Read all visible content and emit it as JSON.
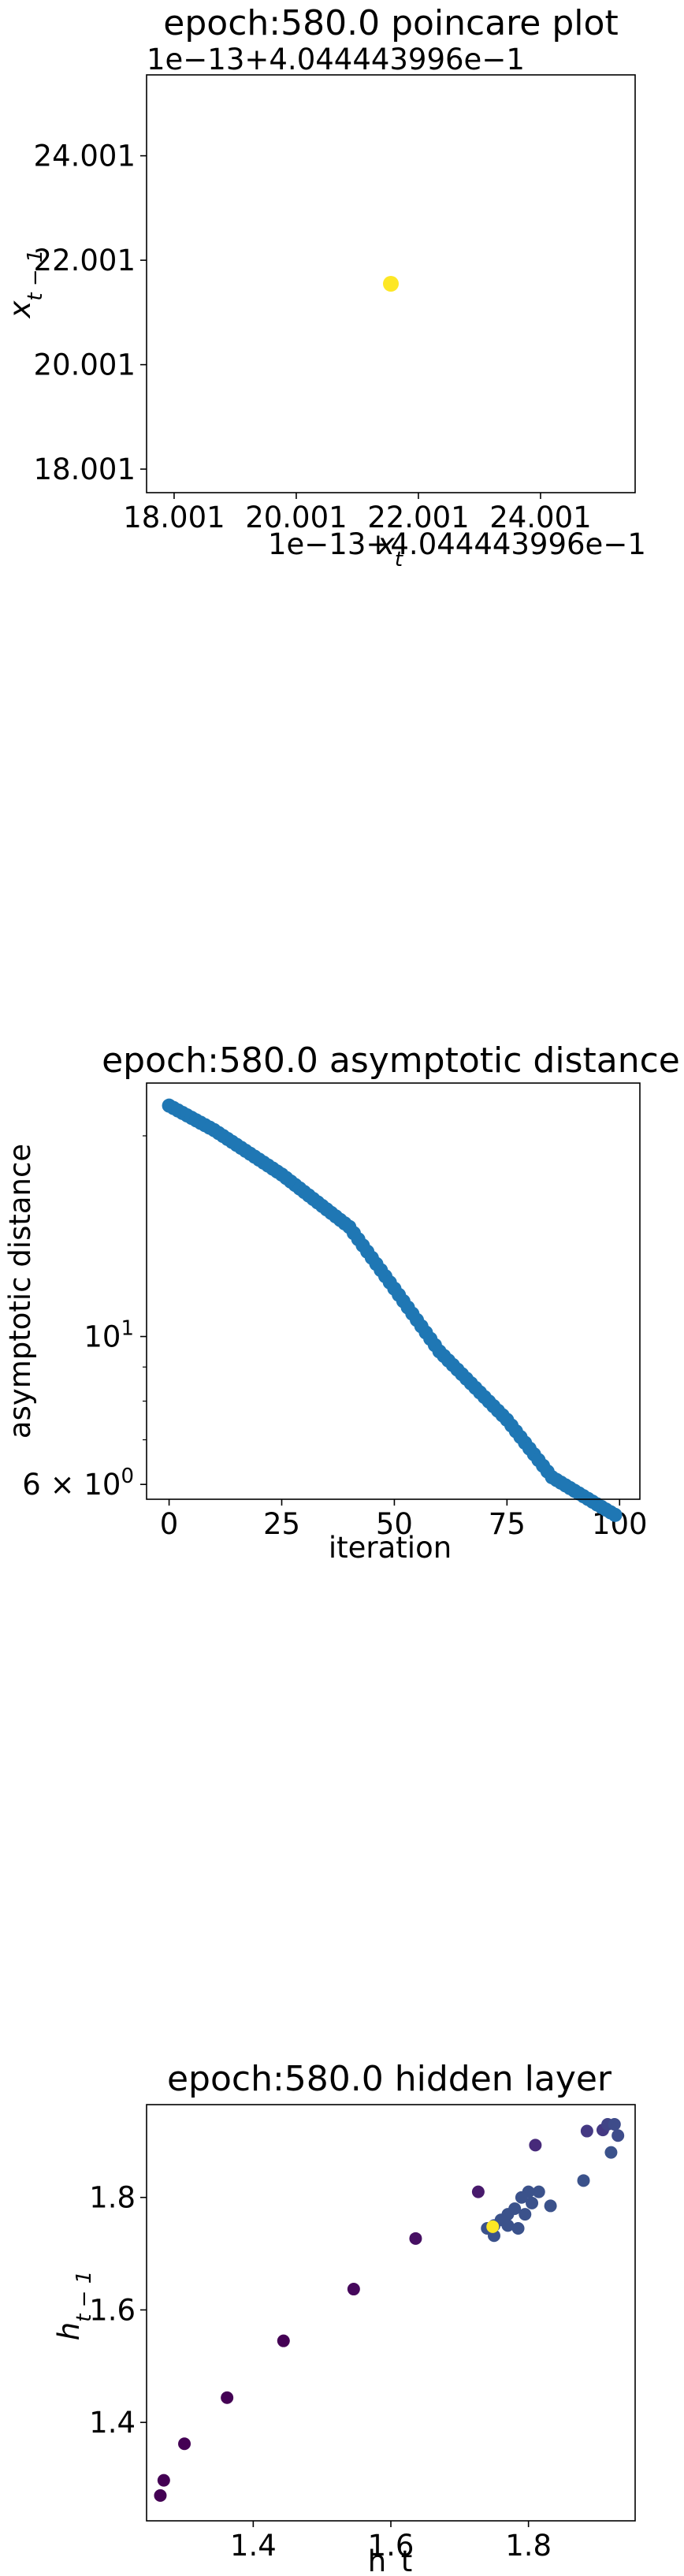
{
  "chart_data": [
    {
      "type": "scatter",
      "title": "epoch:580.0 poincare plot",
      "xlabel": "x_t",
      "ylabel": "x_{t-1}",
      "x_offset_text": "1e−13+4.044443996e−1",
      "y_offset_text": "1e−13+4.044443996e−1",
      "xticks": [
        "18.001",
        "20.001",
        "22.001",
        "24.001"
      ],
      "yticks": [
        "18.001",
        "20.001",
        "22.001",
        "24.001"
      ],
      "tick_values": [
        18.001,
        20.001,
        22.001,
        24.001
      ],
      "xlim": [
        17.55,
        25.55
      ],
      "ylim": [
        17.55,
        25.55
      ],
      "points": [
        {
          "x": 21.55,
          "y": 21.55
        }
      ],
      "point_color": "#fde725",
      "grid": false
    },
    {
      "type": "scatter",
      "title": "epoch:580.0 asymptotic distance",
      "xlabel": "iteration",
      "ylabel": "asymptotic distance",
      "y_scale": "log",
      "xticks": [
        "0",
        "25",
        "50",
        "75",
        "100"
      ],
      "xtick_values": [
        0,
        25,
        50,
        75,
        100
      ],
      "yticks_major": [
        {
          "label": "10",
          "exp": "1",
          "value": 10
        },
        {
          "label": "6 × 10",
          "exp": "0",
          "value": 6
        }
      ],
      "xlim": [
        -5,
        104.5
      ],
      "ylim": [
        5.7,
        24.0
      ],
      "anchors": [
        [
          0,
          22.2
        ],
        [
          10,
          20.4
        ],
        [
          25,
          17.5
        ],
        [
          40,
          14.6
        ],
        [
          50,
          11.8
        ],
        [
          60,
          9.5
        ],
        [
          75,
          7.5
        ],
        [
          85,
          6.15
        ],
        [
          95,
          5.6
        ],
        [
          99,
          5.4
        ]
      ],
      "point_color": "#1f77b4",
      "grid": false
    },
    {
      "type": "scatter",
      "title": "epoch:580.0 hidden layer",
      "xlabel": "h_t",
      "ylabel": "h_{t-1}",
      "xticks": [
        "1.4",
        "1.6",
        "1.8"
      ],
      "xtick_values": [
        1.4,
        1.6,
        1.8
      ],
      "yticks": [
        "1.4",
        "1.6",
        "1.8"
      ],
      "ytick_values": [
        1.4,
        1.6,
        1.8
      ],
      "xlim": [
        1.245,
        1.955
      ],
      "ylim": [
        1.225,
        1.965
      ],
      "points": [
        {
          "x": 1.265,
          "y": 1.27,
          "c": "#440154"
        },
        {
          "x": 1.27,
          "y": 1.297,
          "c": "#440154"
        },
        {
          "x": 1.3,
          "y": 1.362,
          "c": "#440154"
        },
        {
          "x": 1.362,
          "y": 1.444,
          "c": "#440154"
        },
        {
          "x": 1.444,
          "y": 1.545,
          "c": "#440154"
        },
        {
          "x": 1.546,
          "y": 1.637,
          "c": "#46085c"
        },
        {
          "x": 1.636,
          "y": 1.727,
          "c": "#471063"
        },
        {
          "x": 1.727,
          "y": 1.81,
          "c": "#481a6c"
        },
        {
          "x": 1.81,
          "y": 1.893,
          "c": "#472a7a"
        },
        {
          "x": 1.885,
          "y": 1.918,
          "c": "#443983"
        },
        {
          "x": 1.908,
          "y": 1.92,
          "c": "#443983"
        },
        {
          "x": 1.915,
          "y": 1.93,
          "c": "#414487"
        },
        {
          "x": 1.925,
          "y": 1.93,
          "c": "#3e4c8a"
        },
        {
          "x": 1.93,
          "y": 1.91,
          "c": "#3e4c8a"
        },
        {
          "x": 1.92,
          "y": 1.88,
          "c": "#3b528b"
        },
        {
          "x": 1.88,
          "y": 1.83,
          "c": "#3b528b"
        },
        {
          "x": 1.832,
          "y": 1.785,
          "c": "#3b528b"
        },
        {
          "x": 1.815,
          "y": 1.81,
          "c": "#3b528b"
        },
        {
          "x": 1.8,
          "y": 1.81,
          "c": "#3b528b"
        },
        {
          "x": 1.79,
          "y": 1.8,
          "c": "#3b528b"
        },
        {
          "x": 1.805,
          "y": 1.79,
          "c": "#3b528b"
        },
        {
          "x": 1.78,
          "y": 1.78,
          "c": "#3b528b"
        },
        {
          "x": 1.77,
          "y": 1.77,
          "c": "#3b528b"
        },
        {
          "x": 1.795,
          "y": 1.77,
          "c": "#3b528b"
        },
        {
          "x": 1.76,
          "y": 1.76,
          "c": "#3b528b"
        },
        {
          "x": 1.75,
          "y": 1.75,
          "c": "#3b528b"
        },
        {
          "x": 1.77,
          "y": 1.75,
          "c": "#3b528b"
        },
        {
          "x": 1.74,
          "y": 1.745,
          "c": "#3b528b"
        },
        {
          "x": 1.75,
          "y": 1.732,
          "c": "#3b528b"
        },
        {
          "x": 1.785,
          "y": 1.745,
          "c": "#3b528b"
        },
        {
          "x": 1.748,
          "y": 1.748,
          "c": "#fde725"
        }
      ],
      "grid": false
    }
  ]
}
